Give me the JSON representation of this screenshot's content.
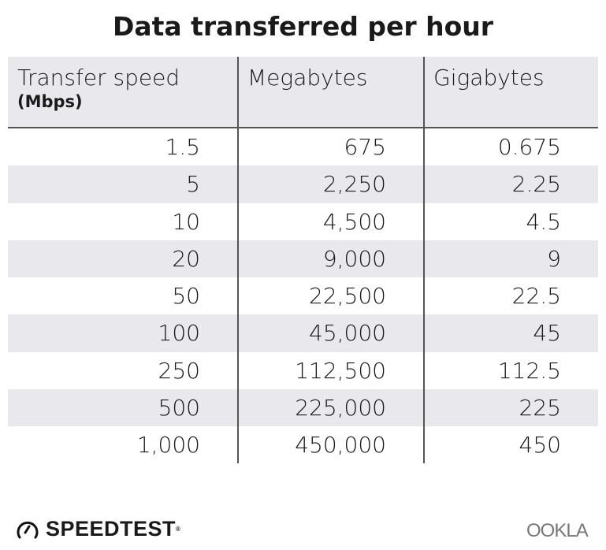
{
  "chart_data": {
    "type": "table",
    "title": "Data transferred per hour",
    "columns": [
      {
        "label": "Transfer speed",
        "sublabel": "(Mbps)"
      },
      {
        "label": "Megabytes"
      },
      {
        "label": "Gigabytes"
      }
    ],
    "rows": [
      [
        "1.5",
        "675",
        "0.675"
      ],
      [
        "5",
        "2,250",
        "2.25"
      ],
      [
        "10",
        "4,500",
        "4.5"
      ],
      [
        "20",
        "9,000",
        "9"
      ],
      [
        "50",
        "22,500",
        "22.5"
      ],
      [
        "100",
        "45,000",
        "45"
      ],
      [
        "250",
        "112,500",
        "112.5"
      ],
      [
        "500",
        "225,000",
        "225"
      ],
      [
        "1,000",
        "450,000",
        "450"
      ]
    ],
    "row_stripe_color": "#e8e8ed"
  },
  "footer": {
    "left_logo": "SPEEDTEST",
    "right_logo": "OOKLA"
  }
}
